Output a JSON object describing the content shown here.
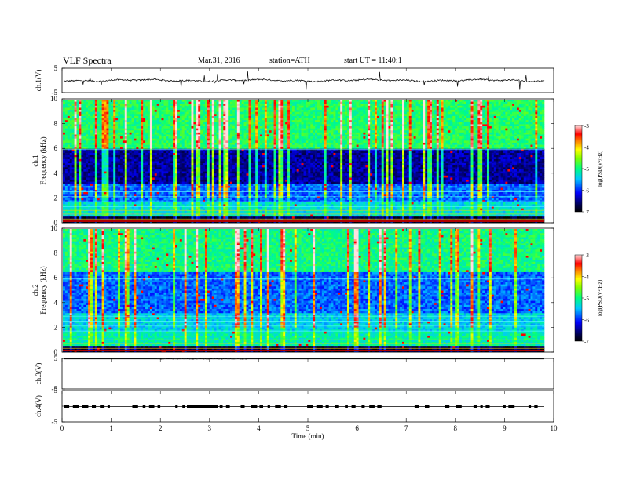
{
  "header": {
    "title": "VLF  Spectra",
    "date": "Mar.31, 2016",
    "station": "station=ATH",
    "start": "start  UT  =   11:40:1"
  },
  "chart_data": [
    {
      "type": "line",
      "ylabel": "ch.1(V)",
      "y_ticks": [
        "5",
        "-5"
      ],
      "ylim": [
        -5,
        5
      ],
      "baseline": 0,
      "noise": 0.6,
      "color": "#000000"
    },
    {
      "type": "heatmap",
      "ylabel": "ch.1",
      "ylabel2": "Frequency  (kHz)",
      "y_ticks": [
        "0",
        "2",
        "4",
        "6",
        "8",
        "10"
      ],
      "ylim": [
        0,
        10
      ],
      "xlim": [
        0,
        9.8
      ],
      "colorbar": {
        "label": "log(PSD(V²/Hz)",
        "ticks": [
          "-3",
          "-4",
          "-5",
          "-6",
          "-7"
        ],
        "range": [
          -7,
          -3
        ]
      },
      "note": "log power spectral density vs time and frequency"
    },
    {
      "type": "heatmap",
      "ylabel": "ch.2",
      "ylabel2": "Frequency  (kHz)",
      "y_ticks": [
        "0",
        "2",
        "4",
        "6",
        "8",
        "10"
      ],
      "ylim": [
        0,
        10
      ],
      "xlim": [
        0,
        9.8
      ],
      "colorbar": {
        "label": "log(PSD(V²/Hz)",
        "ticks": [
          "-3",
          "-4",
          "-5",
          "-6",
          "-7"
        ],
        "range": [
          -7,
          -3
        ]
      }
    },
    {
      "type": "line",
      "ylabel": "ch.3(V)",
      "y_ticks": [
        "5",
        "-5"
      ],
      "ylim": [
        -5,
        5
      ],
      "baseline": 4.8,
      "color": "#000000"
    },
    {
      "type": "line",
      "ylabel": "ch.4(V)",
      "y_ticks": [
        "5",
        "",
        "-5"
      ],
      "ylim": [
        -5,
        5
      ],
      "baseline": 0,
      "color": "#000000",
      "xlabel": "Time  (min)",
      "x_ticks": [
        "0",
        "1",
        "2",
        "3",
        "4",
        "5",
        "6",
        "7",
        "8",
        "9",
        "10"
      ],
      "xlim": [
        0,
        10
      ]
    }
  ]
}
